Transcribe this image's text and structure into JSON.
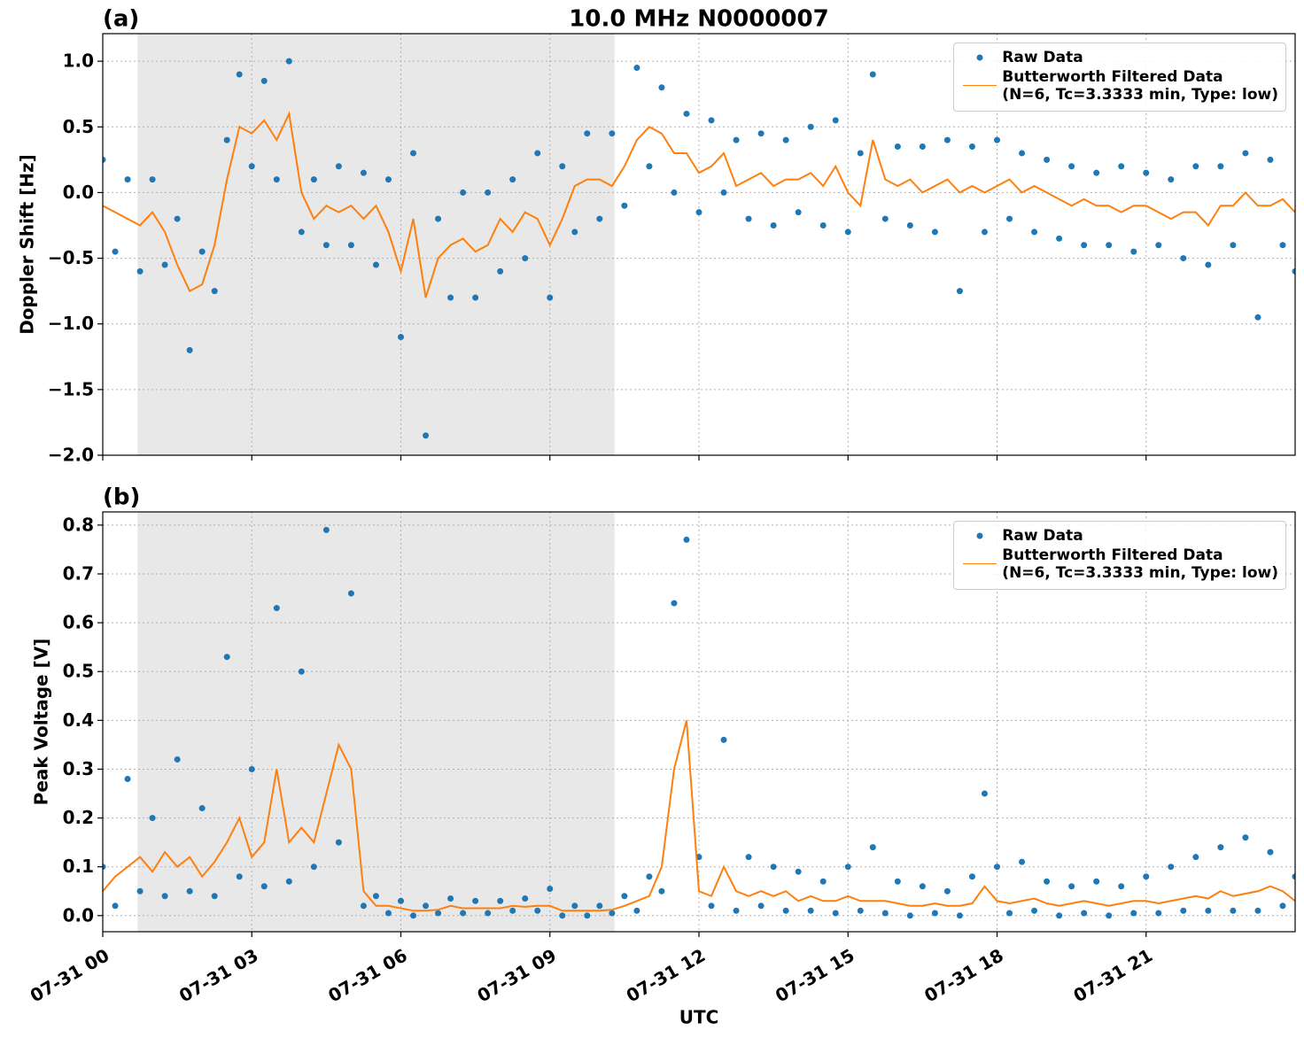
{
  "chart_data": [
    {
      "type": "line",
      "panel_label": "(a)",
      "title": "10.0 MHz N0000007",
      "ylabel": "Doppler Shift [Hz]",
      "xlim": [
        0,
        24
      ],
      "ylim": [
        -2.0,
        1.21
      ],
      "yticks": [
        {
          "value": 1,
          "label": "1.0"
        },
        {
          "value": 0.5,
          "label": "0.5"
        },
        {
          "value": 0,
          "label": "0.0"
        },
        {
          "value": -0.5,
          "label": "−0.5"
        },
        {
          "value": -1,
          "label": "−1.0"
        },
        {
          "value": -1.5,
          "label": "−1.5"
        },
        {
          "value": -2,
          "label": "−2.0"
        }
      ],
      "grid": true,
      "legend": "upper right",
      "shade": {
        "xlim": [
          0.7,
          10.3
        ],
        "color": "#e8e8e8"
      },
      "x": [
        0,
        0.25,
        0.5,
        0.75,
        1,
        1.25,
        1.5,
        1.75,
        2,
        2.25,
        2.5,
        2.75,
        3,
        3.25,
        3.5,
        3.75,
        4,
        4.25,
        4.5,
        4.75,
        5,
        5.25,
        5.5,
        5.75,
        6,
        6.25,
        6.5,
        6.75,
        7,
        7.25,
        7.5,
        7.75,
        8,
        8.25,
        8.5,
        8.75,
        9,
        9.25,
        9.5,
        9.75,
        10,
        10.25,
        10.5,
        10.75,
        11,
        11.25,
        11.5,
        11.75,
        12,
        12.25,
        12.5,
        12.75,
        13,
        13.25,
        13.5,
        13.75,
        14,
        14.25,
        14.5,
        14.75,
        15,
        15.25,
        15.5,
        15.75,
        16,
        16.25,
        16.5,
        16.75,
        17,
        17.25,
        17.5,
        17.75,
        18,
        18.25,
        18.5,
        18.75,
        19,
        19.25,
        19.5,
        19.75,
        20,
        20.25,
        20.5,
        20.75,
        21,
        21.25,
        21.5,
        21.75,
        22,
        22.25,
        22.5,
        22.75,
        23,
        23.25,
        23.5,
        23.75,
        24
      ],
      "series": [
        {
          "name": "Raw Data",
          "kind": "scatter",
          "color": "#1f77b4",
          "values": [
            0.25,
            -0.45,
            0.1,
            -0.6,
            0.1,
            -0.55,
            -0.2,
            -1.2,
            -0.45,
            -0.75,
            0.4,
            0.9,
            0.2,
            0.85,
            0.1,
            1.0,
            -0.3,
            0.1,
            -0.4,
            0.2,
            -0.4,
            0.15,
            -0.55,
            0.1,
            -1.1,
            0.3,
            -1.85,
            -0.2,
            -0.8,
            0.0,
            -0.8,
            0.0,
            -0.6,
            0.1,
            -0.5,
            0.3,
            -0.8,
            0.2,
            -0.3,
            0.45,
            -0.2,
            0.45,
            -0.1,
            0.95,
            0.2,
            0.8,
            0.0,
            0.6,
            -0.15,
            0.55,
            0.0,
            0.4,
            -0.2,
            0.45,
            -0.25,
            0.4,
            -0.15,
            0.5,
            -0.25,
            0.55,
            -0.3,
            0.3,
            0.9,
            -0.2,
            0.35,
            -0.25,
            0.35,
            -0.3,
            0.4,
            -0.75,
            0.35,
            -0.3,
            0.4,
            -0.2,
            0.3,
            -0.3,
            0.25,
            -0.35,
            0.2,
            -0.4,
            0.15,
            -0.4,
            0.2,
            -0.45,
            0.15,
            -0.4,
            0.1,
            -0.5,
            0.2,
            -0.55,
            0.2,
            -0.4,
            0.3,
            -0.95,
            0.25,
            -0.4,
            -0.6
          ]
        },
        {
          "name": "Butterworth Filtered Data\n(N=6, Tc=3.3333 min, Type: low)",
          "kind": "line",
          "color": "#ff7f0e",
          "values": [
            -0.1,
            -0.15,
            -0.2,
            -0.25,
            -0.15,
            -0.3,
            -0.55,
            -0.75,
            -0.7,
            -0.4,
            0.1,
            0.5,
            0.45,
            0.55,
            0.4,
            0.6,
            0.0,
            -0.2,
            -0.1,
            -0.15,
            -0.1,
            -0.2,
            -0.1,
            -0.3,
            -0.6,
            -0.2,
            -0.8,
            -0.5,
            -0.4,
            -0.35,
            -0.45,
            -0.4,
            -0.2,
            -0.3,
            -0.15,
            -0.2,
            -0.4,
            -0.2,
            0.05,
            0.1,
            0.1,
            0.05,
            0.2,
            0.4,
            0.5,
            0.45,
            0.3,
            0.3,
            0.15,
            0.2,
            0.3,
            0.05,
            0.1,
            0.15,
            0.05,
            0.1,
            0.1,
            0.15,
            0.05,
            0.2,
            0.0,
            -0.1,
            0.4,
            0.1,
            0.05,
            0.1,
            0.0,
            0.05,
            0.1,
            0.0,
            0.05,
            0.0,
            0.05,
            0.1,
            0.0,
            0.05,
            0.0,
            -0.05,
            -0.1,
            -0.05,
            -0.1,
            -0.1,
            -0.15,
            -0.1,
            -0.1,
            -0.15,
            -0.2,
            -0.15,
            -0.15,
            -0.25,
            -0.1,
            -0.1,
            0.0,
            -0.1,
            -0.1,
            -0.05,
            -0.15
          ]
        }
      ]
    },
    {
      "type": "line",
      "panel_label": "(b)",
      "ylabel": "Peak Voltage [V]",
      "xlabel": "UTC",
      "xlim": [
        0,
        24
      ],
      "ylim": [
        -0.033,
        0.827
      ],
      "xticks": [
        {
          "value": 0,
          "label": "07-31 00"
        },
        {
          "value": 3,
          "label": "07-31 03"
        },
        {
          "value": 6,
          "label": "07-31 06"
        },
        {
          "value": 9,
          "label": "07-31 09"
        },
        {
          "value": 12,
          "label": "07-31 12"
        },
        {
          "value": 15,
          "label": "07-31 15"
        },
        {
          "value": 18,
          "label": "07-31 18"
        },
        {
          "value": 21,
          "label": "07-31 21"
        }
      ],
      "yticks": [
        {
          "value": 0,
          "label": "0.0"
        },
        {
          "value": 0.1,
          "label": "0.1"
        },
        {
          "value": 0.2,
          "label": "0.2"
        },
        {
          "value": 0.3,
          "label": "0.3"
        },
        {
          "value": 0.4,
          "label": "0.4"
        },
        {
          "value": 0.5,
          "label": "0.5"
        },
        {
          "value": 0.6,
          "label": "0.6"
        },
        {
          "value": 0.7,
          "label": "0.7"
        },
        {
          "value": 0.8,
          "label": "0.8"
        }
      ],
      "grid": true,
      "legend": "upper right",
      "shade": {
        "xlim": [
          0.7,
          10.3
        ],
        "color": "#e8e8e8"
      },
      "x": [
        0,
        0.25,
        0.5,
        0.75,
        1,
        1.25,
        1.5,
        1.75,
        2,
        2.25,
        2.5,
        2.75,
        3,
        3.25,
        3.5,
        3.75,
        4,
        4.25,
        4.5,
        4.75,
        5,
        5.25,
        5.5,
        5.75,
        6,
        6.25,
        6.5,
        6.75,
        7,
        7.25,
        7.5,
        7.75,
        8,
        8.25,
        8.5,
        8.75,
        9,
        9.25,
        9.5,
        9.75,
        10,
        10.25,
        10.5,
        10.75,
        11,
        11.25,
        11.5,
        11.75,
        12,
        12.25,
        12.5,
        12.75,
        13,
        13.25,
        13.5,
        13.75,
        14,
        14.25,
        14.5,
        14.75,
        15,
        15.25,
        15.5,
        15.75,
        16,
        16.25,
        16.5,
        16.75,
        17,
        17.25,
        17.5,
        17.75,
        18,
        18.25,
        18.5,
        18.75,
        19,
        19.25,
        19.5,
        19.75,
        20,
        20.25,
        20.5,
        20.75,
        21,
        21.25,
        21.5,
        21.75,
        22,
        22.25,
        22.5,
        22.75,
        23,
        23.25,
        23.5,
        23.75,
        24
      ],
      "series": [
        {
          "name": "Raw Data",
          "kind": "scatter",
          "color": "#1f77b4",
          "values": [
            0.1,
            0.02,
            0.28,
            0.05,
            0.2,
            0.04,
            0.32,
            0.05,
            0.22,
            0.04,
            0.53,
            0.08,
            0.3,
            0.06,
            0.63,
            0.07,
            0.5,
            0.1,
            0.79,
            0.15,
            0.66,
            0.02,
            0.04,
            0.005,
            0.03,
            0.0,
            0.02,
            0.005,
            0.035,
            0.005,
            0.03,
            0.005,
            0.03,
            0.01,
            0.035,
            0.01,
            0.055,
            0.0,
            0.02,
            0.0,
            0.02,
            0.005,
            0.04,
            0.01,
            0.08,
            0.05,
            0.64,
            0.77,
            0.12,
            0.02,
            0.36,
            0.01,
            0.12,
            0.02,
            0.1,
            0.01,
            0.09,
            0.01,
            0.07,
            0.005,
            0.1,
            0.01,
            0.14,
            0.005,
            0.07,
            0.0,
            0.06,
            0.005,
            0.05,
            0.0,
            0.08,
            0.25,
            0.1,
            0.005,
            0.11,
            0.01,
            0.07,
            0.0,
            0.06,
            0.005,
            0.07,
            0.0,
            0.06,
            0.005,
            0.08,
            0.005,
            0.1,
            0.01,
            0.12,
            0.01,
            0.14,
            0.01,
            0.16,
            0.01,
            0.13,
            0.02,
            0.08
          ]
        },
        {
          "name": "Butterworth Filtered Data\n(N=6, Tc=3.3333 min, Type: low)",
          "kind": "line",
          "color": "#ff7f0e",
          "values": [
            0.05,
            0.08,
            0.1,
            0.12,
            0.09,
            0.13,
            0.1,
            0.12,
            0.08,
            0.11,
            0.15,
            0.2,
            0.12,
            0.15,
            0.3,
            0.15,
            0.18,
            0.15,
            0.25,
            0.35,
            0.3,
            0.05,
            0.02,
            0.02,
            0.015,
            0.01,
            0.01,
            0.012,
            0.02,
            0.015,
            0.015,
            0.015,
            0.015,
            0.02,
            0.018,
            0.02,
            0.02,
            0.01,
            0.01,
            0.01,
            0.01,
            0.012,
            0.02,
            0.03,
            0.04,
            0.1,
            0.3,
            0.4,
            0.05,
            0.04,
            0.1,
            0.05,
            0.04,
            0.05,
            0.04,
            0.05,
            0.03,
            0.04,
            0.03,
            0.03,
            0.04,
            0.03,
            0.03,
            0.03,
            0.025,
            0.02,
            0.02,
            0.025,
            0.02,
            0.02,
            0.025,
            0.06,
            0.03,
            0.025,
            0.03,
            0.035,
            0.025,
            0.02,
            0.025,
            0.03,
            0.025,
            0.02,
            0.025,
            0.03,
            0.03,
            0.025,
            0.03,
            0.035,
            0.04,
            0.035,
            0.05,
            0.04,
            0.045,
            0.05,
            0.06,
            0.05,
            0.03
          ]
        }
      ]
    }
  ]
}
